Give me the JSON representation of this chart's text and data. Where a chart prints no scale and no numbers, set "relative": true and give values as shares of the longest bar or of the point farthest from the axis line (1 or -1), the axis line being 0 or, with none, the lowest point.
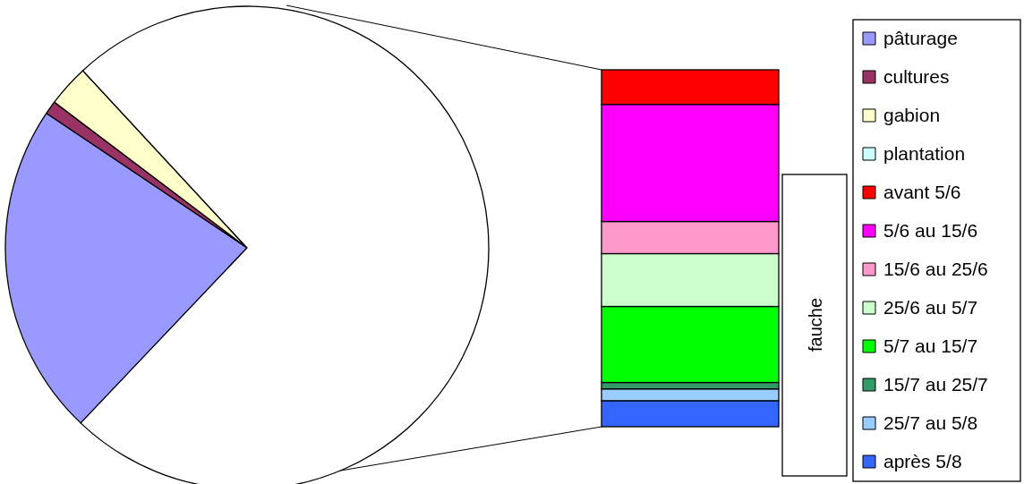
{
  "chart_data": [
    {
      "type": "pie",
      "categories": [
        "pâturage",
        "cultures",
        "gabion",
        "plantation",
        null
      ],
      "values": [
        22.3,
        0.9,
        2.8,
        null,
        73.9
      ],
      "colors": [
        "#9999ff",
        "#993366",
        "#ffffcc",
        "#ccffff",
        "#ffffff"
      ],
      "legend": "right"
    },
    {
      "type": "bar",
      "stacked": true,
      "relative": true,
      "categories": [
        null
      ],
      "ylabel": "fauche",
      "legend": "right",
      "series": [
        {
          "name": "après 5/8",
          "color": "#3366ff",
          "values": [
            0.073
          ]
        },
        {
          "name": "25/7 au 5/8",
          "color": "#99ccff",
          "values": [
            0.033
          ]
        },
        {
          "name": "15/7 au 25/7",
          "color": "#339966",
          "values": [
            0.018
          ]
        },
        {
          "name": "5/7 au 15/7",
          "color": "#00ff00",
          "values": [
            0.213
          ]
        },
        {
          "name": "25/6 au 5/7",
          "color": "#ccffcc",
          "values": [
            0.148
          ]
        },
        {
          "name": "15/6 au 25/6",
          "color": "#ff99cc",
          "values": [
            0.09
          ]
        },
        {
          "name": "5/6 au 15/6",
          "color": "#ff00ff",
          "values": [
            0.328
          ]
        },
        {
          "name": "avant 5/6",
          "color": "#ff0000",
          "values": [
            0.097
          ]
        }
      ]
    }
  ]
}
